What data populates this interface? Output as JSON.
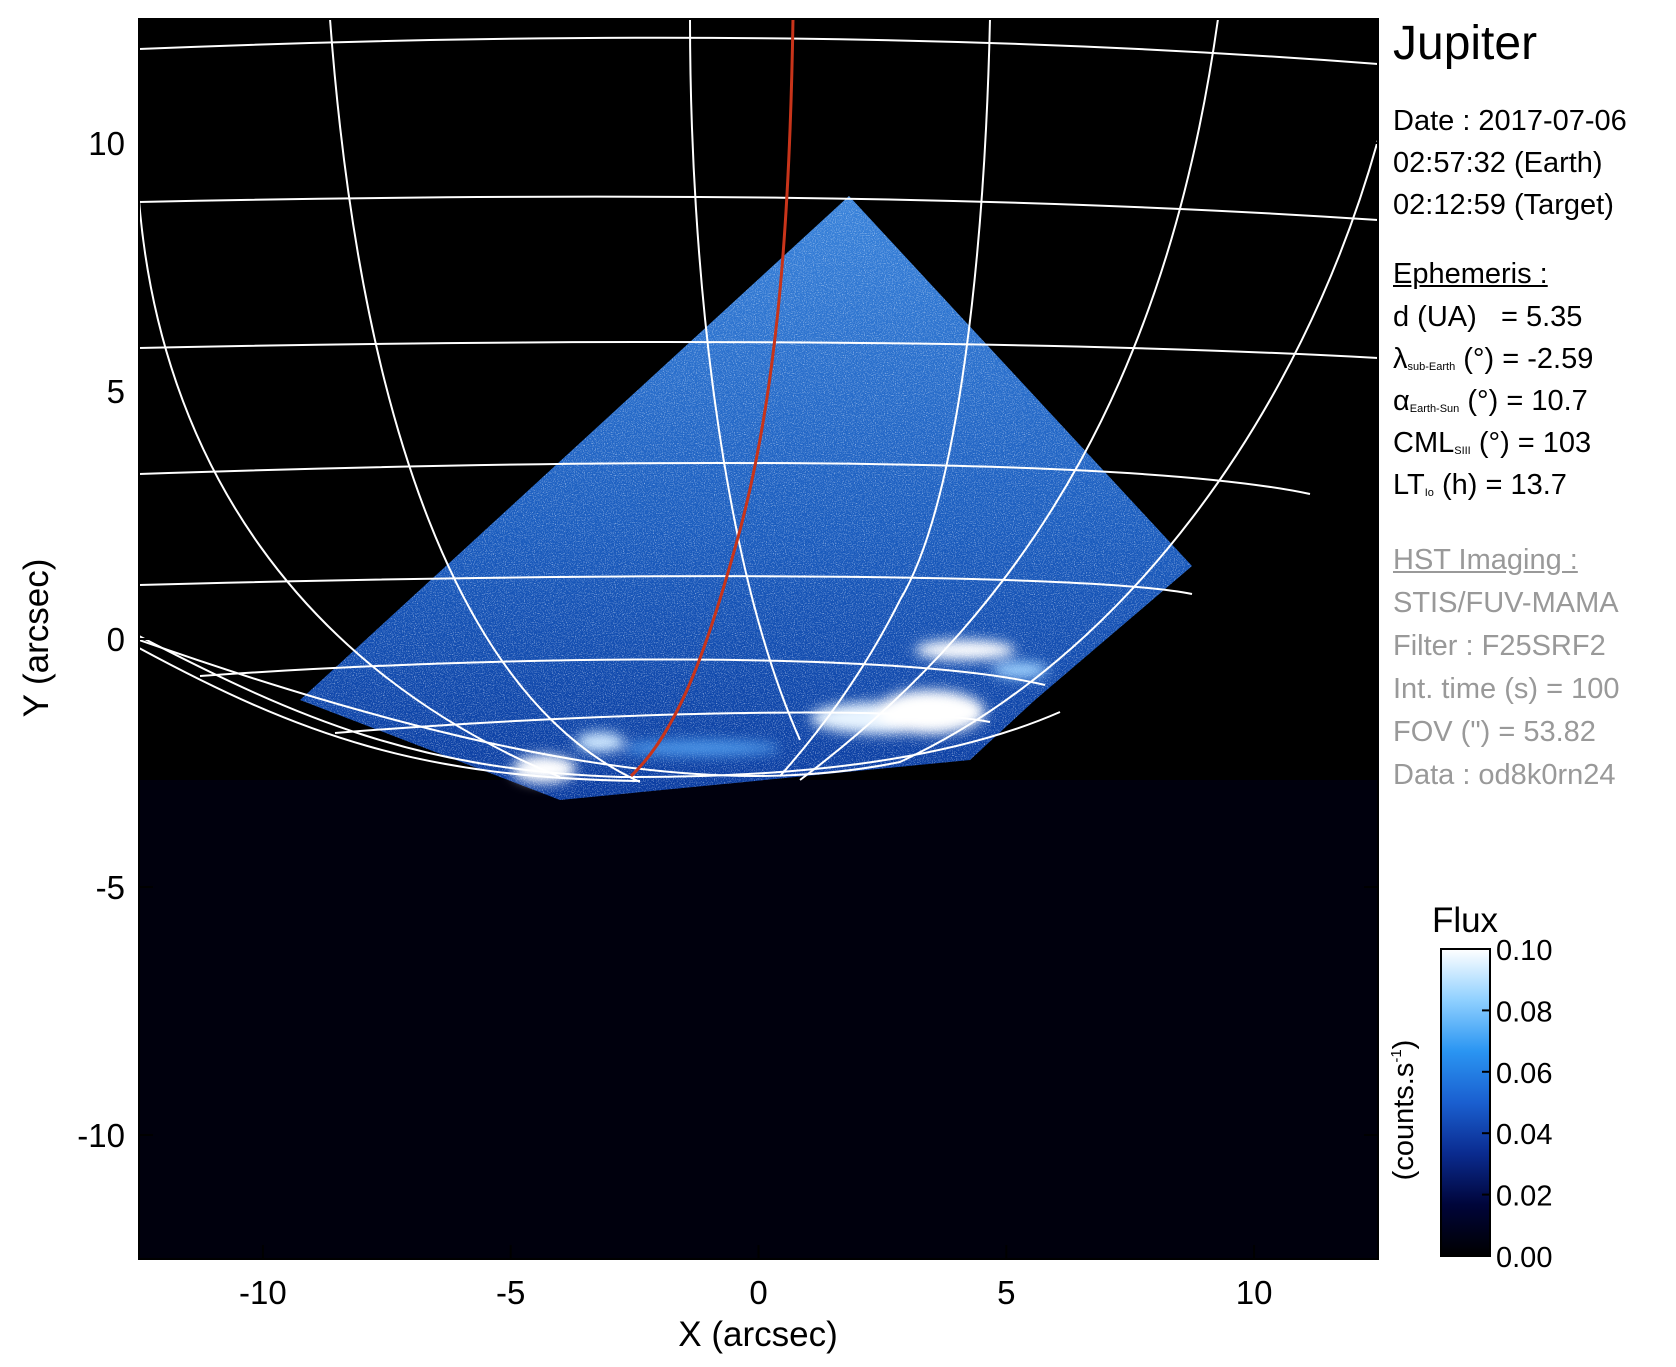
{
  "title": "Jupiter",
  "observation": {
    "date_line": "Date : 2017-07-06",
    "earth_time_line": "02:57:32 (Earth)",
    "target_time_line": "02:12:59 (Target)"
  },
  "ephemeris": {
    "header": "Ephemeris :",
    "d_label": "d (UA)",
    "d_value": "= 5.35",
    "lambda_symbol": "λ",
    "lambda_sub": "sub-Earth",
    "lambda_value": "(°) = -2.59",
    "alpha_symbol": "α",
    "alpha_sub": "Earth-Sun",
    "alpha_value": "(°) = 10.7",
    "cml_symbol": "CML",
    "cml_sub": "SIII",
    "cml_value": "(°) = 103",
    "lt_symbol": "LT",
    "lt_sub": "Io",
    "lt_value": "(h) = 13.7"
  },
  "hst": {
    "header": "HST Imaging :",
    "instrument": "STIS/FUV-MAMA",
    "filter": "Filter : F25SRF2",
    "int_time": "Int. time (s) = 100",
    "fov": "FOV (\") = 53.82",
    "data": "Data : od8k0rn24"
  },
  "colorbar": {
    "title": "Flux",
    "unit": "(counts.s",
    "unit_exponent": "-1",
    "unit_close": ")",
    "ticks": [
      "0.10",
      "0.08",
      "0.06",
      "0.04",
      "0.02",
      "0.00"
    ],
    "tick_values": [
      0.1,
      0.08,
      0.06,
      0.04,
      0.02,
      0.0
    ],
    "range": [
      0.0,
      0.1
    ],
    "colors": [
      "#000000",
      "#00053a",
      "#0a2b8f",
      "#1a5fd0",
      "#2a95f2",
      "#8fd0ff",
      "#ffffff"
    ]
  },
  "axes": {
    "xlabel": "X (arcsec)",
    "ylabel": "Y (arcsec)",
    "xlim": [
      -12.5,
      12.5
    ],
    "ylim": [
      -12.5,
      12.5
    ],
    "xticks": [
      -10,
      -5,
      0,
      5,
      10
    ],
    "yticks": [
      -10,
      -5,
      0,
      5,
      10
    ],
    "xtick_labels": [
      "-10",
      "-5",
      "0",
      "5",
      "10"
    ],
    "ytick_labels": [
      "-10",
      "-5",
      "0",
      "5",
      "10"
    ]
  },
  "image": {
    "background_color": "#000000",
    "grid_color": "#ffffff",
    "io_footprint_color": "#c8341a"
  }
}
